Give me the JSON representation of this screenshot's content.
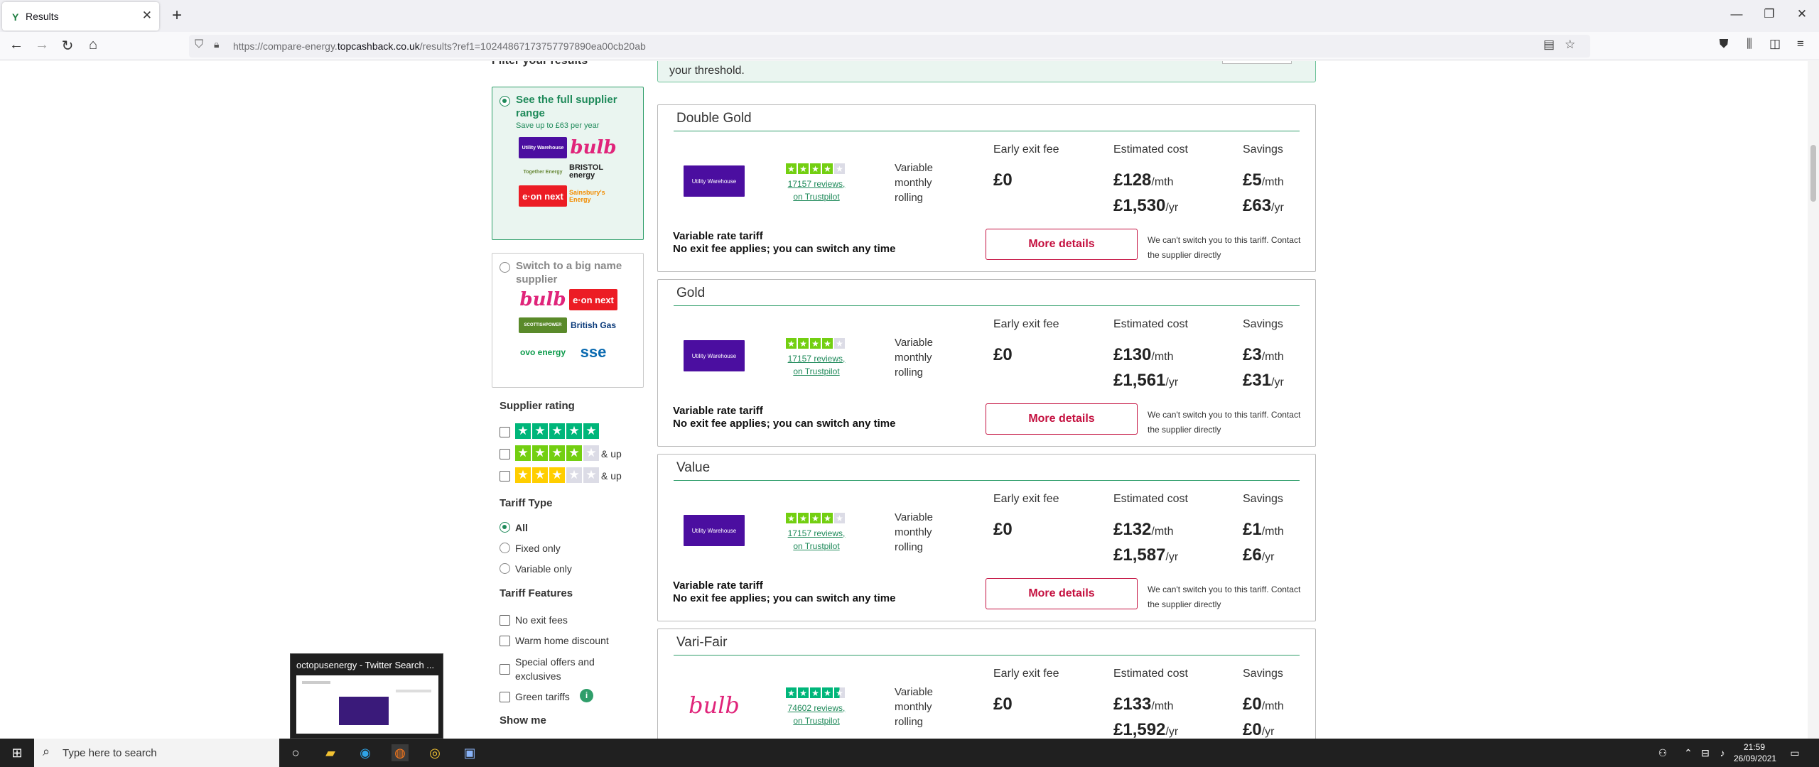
{
  "browser": {
    "tab_title": "Results",
    "tab_favicon": "Y",
    "new_tab": "+",
    "url_host_prefix": "https://compare-energy.",
    "url_host": "topcashback.co.uk",
    "url_path": "/results?ref1=10244867173757797890ea00cb20ab"
  },
  "sidebar": {
    "heading": "Filter your results",
    "option_full": {
      "title": "See the full supplier range",
      "subtitle": "Save up to £63 per year",
      "logos": [
        "Utility Warehouse",
        "bulb",
        "Together Energy",
        "BRISTOL energy",
        "e·on next",
        "Sainsbury's Energy"
      ]
    },
    "option_big": {
      "title": "Switch to a big name supplier",
      "logos": [
        "bulb",
        "e·on next",
        "SCOTTISHPOWER",
        "British Gas",
        "ovo energy",
        "sse"
      ]
    },
    "supplier_rating": {
      "heading": "Supplier rating",
      "rows": [
        {
          "stars": 5,
          "suffix": ""
        },
        {
          "stars": 4,
          "suffix": "& up"
        },
        {
          "stars": 3,
          "suffix": "& up"
        }
      ]
    },
    "tariff_type": {
      "heading": "Tariff Type",
      "options": [
        "All",
        "Fixed only",
        "Variable only"
      ],
      "selected": "All"
    },
    "tariff_features": {
      "heading": "Tariff Features",
      "options": [
        "No exit fees",
        "Warm home discount",
        "Special offers and exclusives",
        "Green tariffs"
      ]
    },
    "show_me": "Show me"
  },
  "banner": {
    "text": "your threshold."
  },
  "cards": [
    {
      "name": "Double Gold",
      "supplier": "Utility Warehouse",
      "reviews": "17157 reviews",
      "reviews_line2": "on Trustpilot",
      "rating": 4,
      "tariff_kind": "Variable monthly rolling",
      "exit_fee_label": "Early exit fee",
      "exit_fee": "£0",
      "cost_label": "Estimated cost",
      "cost_month": "£128",
      "cost_year": "£1,530",
      "savings_label": "Savings",
      "save_month": "£5",
      "save_year": "£63",
      "per_month": "/mth",
      "per_year": "/yr",
      "rate_type": "Variable rate tariff",
      "exit_note": "No exit fee applies; you can switch any time",
      "button": "More details",
      "note": "We can't switch you to this tariff. Contact the supplier directly"
    },
    {
      "name": "Gold",
      "supplier": "Utility Warehouse",
      "reviews": "17157 reviews",
      "reviews_line2": "on Trustpilot",
      "rating": 4,
      "tariff_kind": "Variable monthly rolling",
      "exit_fee_label": "Early exit fee",
      "exit_fee": "£0",
      "cost_label": "Estimated cost",
      "cost_month": "£130",
      "cost_year": "£1,561",
      "savings_label": "Savings",
      "save_month": "£3",
      "save_year": "£31",
      "per_month": "/mth",
      "per_year": "/yr",
      "rate_type": "Variable rate tariff",
      "exit_note": "No exit fee applies; you can switch any time",
      "button": "More details",
      "note": "We can't switch you to this tariff. Contact the supplier directly"
    },
    {
      "name": "Value",
      "supplier": "Utility Warehouse",
      "reviews": "17157 reviews",
      "reviews_line2": "on Trustpilot",
      "rating": 4,
      "tariff_kind": "Variable monthly rolling",
      "exit_fee_label": "Early exit fee",
      "exit_fee": "£0",
      "cost_label": "Estimated cost",
      "cost_month": "£132",
      "cost_year": "£1,587",
      "savings_label": "Savings",
      "save_month": "£1",
      "save_year": "£6",
      "per_month": "/mth",
      "per_year": "/yr",
      "rate_type": "Variable rate tariff",
      "exit_note": "No exit fee applies; you can switch any time",
      "button": "More details",
      "note": "We can't switch you to this tariff. Contact the supplier directly"
    },
    {
      "name": "Vari-Fair",
      "supplier": "bulb",
      "reviews": "74602 reviews",
      "reviews_line2": "on Trustpilot",
      "rating": 4.5,
      "tariff_kind": "Variable monthly rolling",
      "exit_fee_label": "Early exit fee",
      "exit_fee": "£0",
      "cost_label": "Estimated cost",
      "cost_month": "£133",
      "cost_year": "£1,592",
      "savings_label": "Savings",
      "save_month": "£0",
      "save_year": "£0",
      "per_month": "/mth",
      "per_year": "/yr",
      "rate_type": "",
      "exit_note": "",
      "button": "",
      "note": ""
    }
  ],
  "taskbar": {
    "search_placeholder": "Type here to search",
    "preview_title": "octopusenergy - Twitter Search ...",
    "time": "21:59",
    "date": "26/09/2021"
  },
  "colors": {
    "accent_green": "#2f9e6a",
    "cta_red": "#c4103f",
    "uw_purple": "#4b0ea0",
    "bulb_pink": "#e0247a",
    "trustpilot_green": "#00b67a"
  }
}
